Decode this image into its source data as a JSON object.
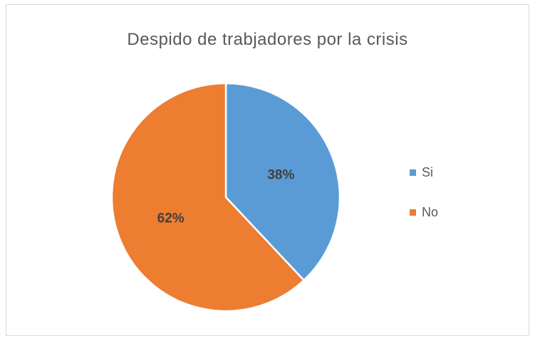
{
  "chart_data": {
    "type": "pie",
    "title": "Despido de trabjadores por la crisis",
    "categories": [
      "Si",
      "No"
    ],
    "values": [
      38,
      62
    ],
    "data_labels": [
      "38%",
      "62%"
    ],
    "colors": [
      "#5b9bd5",
      "#ed7d31"
    ],
    "start_angle": "top",
    "direction": "clockwise",
    "legend_position": "right"
  }
}
